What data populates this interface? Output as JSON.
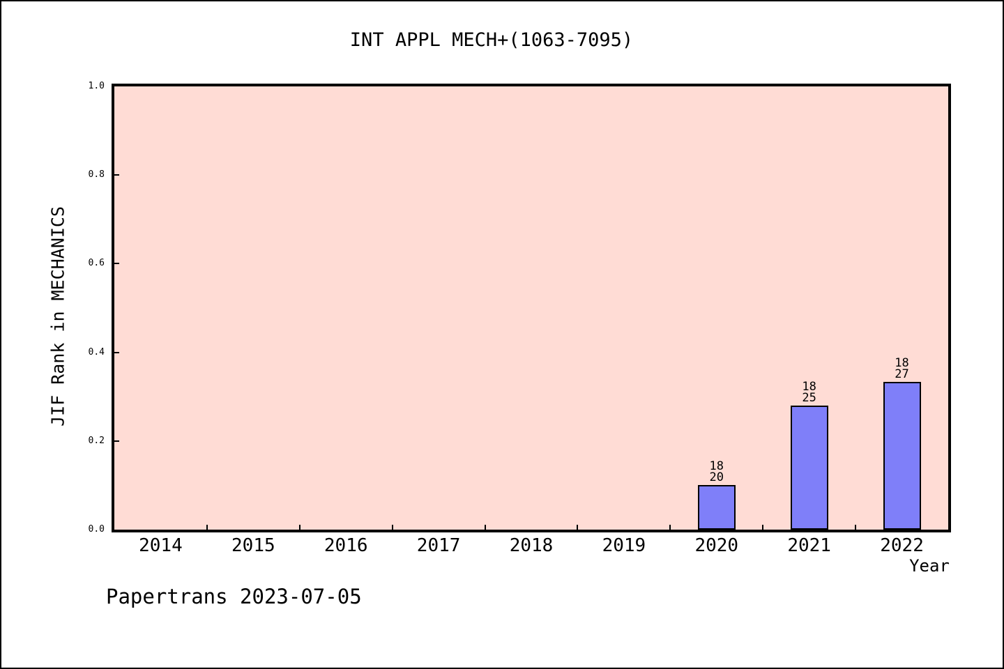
{
  "title": "INT APPL MECH+(1063-7095)",
  "footer": {
    "label": "Papertrans 2023-07-05"
  },
  "chart_data": {
    "type": "bar",
    "title": "INT APPL MECH+(1063-7095)",
    "xlabel": "Year",
    "ylabel": "JIF Rank in MECHANICS",
    "categories": [
      "2014",
      "2015",
      "2016",
      "2017",
      "2018",
      "2019",
      "2020",
      "2021",
      "2022"
    ],
    "series": [
      {
        "name": "JIF Rank fraction",
        "values": [
          null,
          null,
          null,
          null,
          null,
          null,
          0.1,
          0.28,
          0.333
        ]
      }
    ],
    "bar_annotations": [
      {
        "category": "2020",
        "lines": [
          "18",
          "20"
        ]
      },
      {
        "category": "2021",
        "lines": [
          "18",
          "25"
        ]
      },
      {
        "category": "2022",
        "lines": [
          "18",
          "27"
        ]
      }
    ],
    "yticks": [
      0.0,
      0.2,
      0.4,
      0.6,
      0.8,
      1.0
    ],
    "ytick_labels": [
      "0.0",
      "0.2",
      "0.4",
      "0.6",
      "0.8",
      "1.0"
    ],
    "ylim": [
      0,
      1
    ],
    "grid": false,
    "legend": false,
    "colors": {
      "plot_background": "#ffdcd5",
      "bar_fill": "#7f7ff9",
      "bar_edge": "#000000",
      "axis": "#000000",
      "text": "#000000"
    }
  }
}
